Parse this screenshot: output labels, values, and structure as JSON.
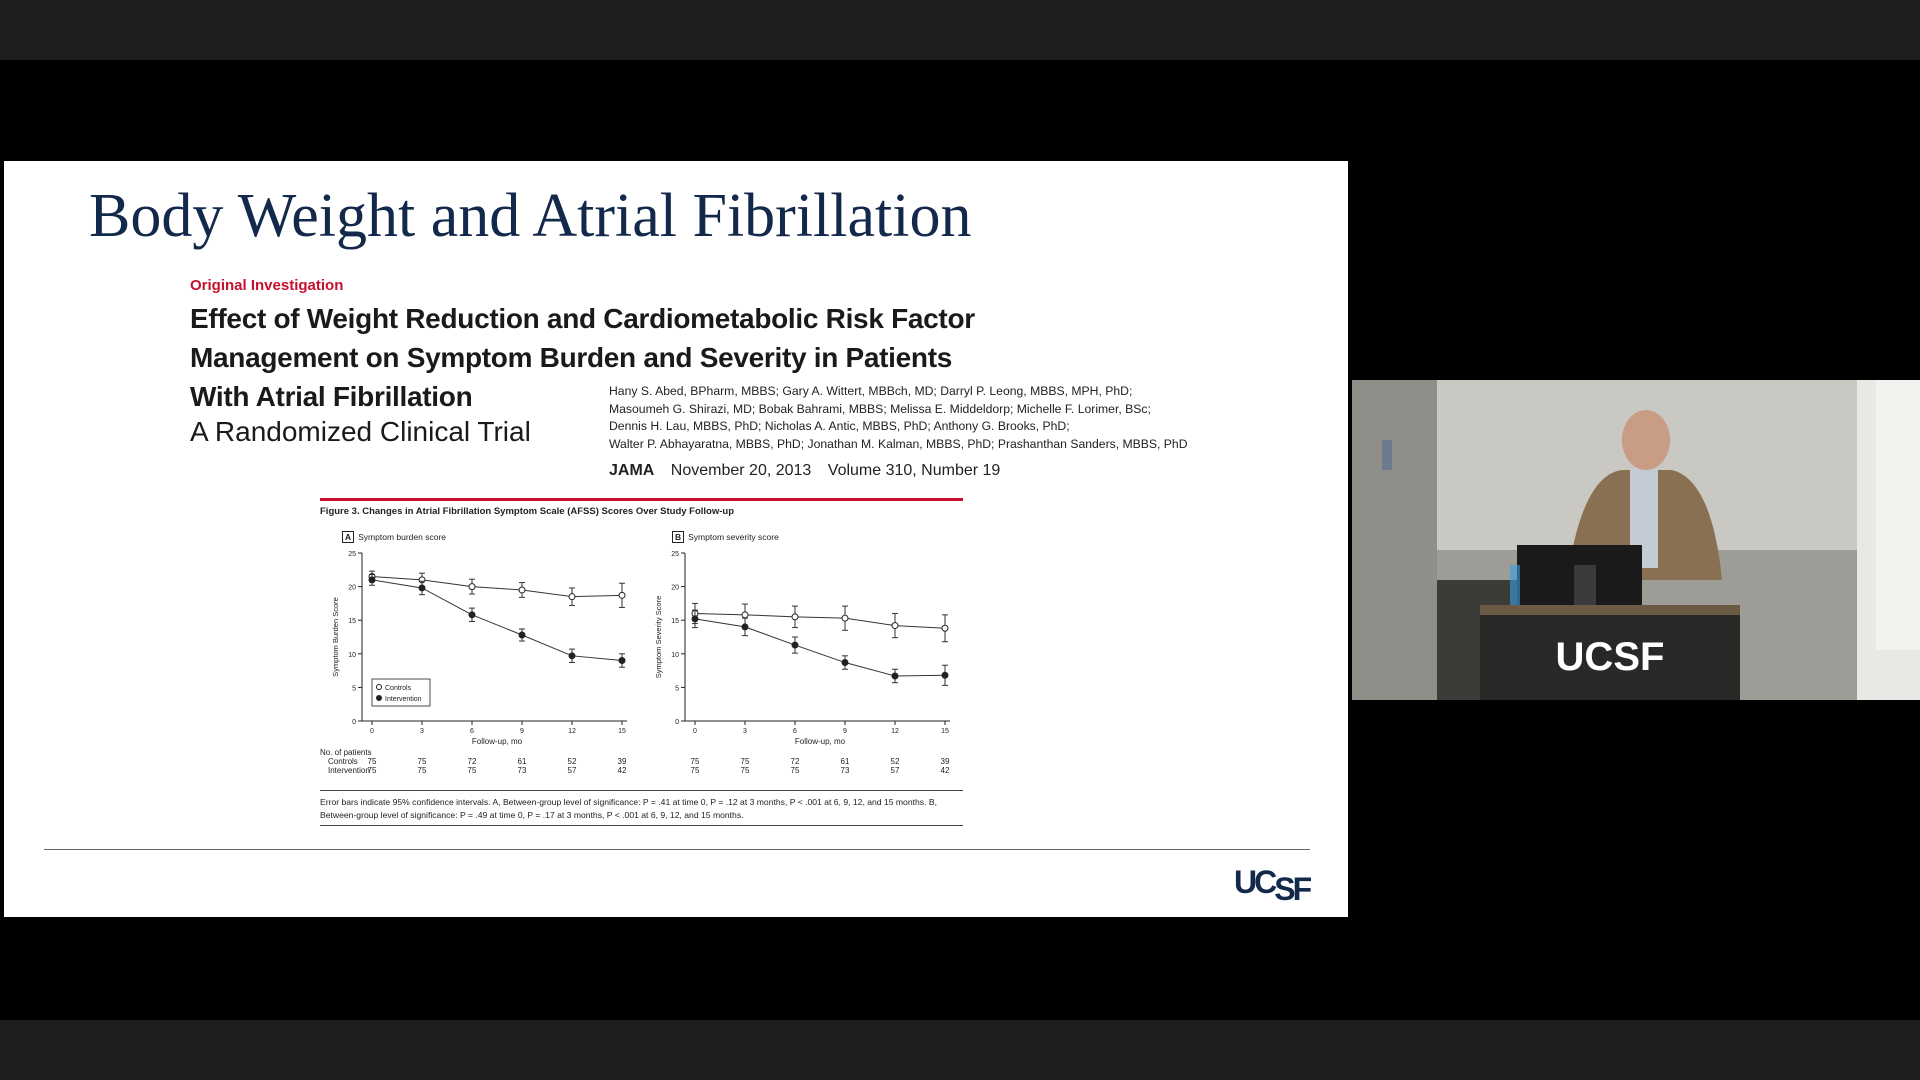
{
  "slide": {
    "title": "Body Weight and Atrial Fibrillation",
    "section": "Original Investigation",
    "paper_title_lines": [
      "Effect of Weight Reduction and Cardiometabolic Risk Factor",
      "Management on Symptom Burden and Severity in Patients",
      "With Atrial Fibrillation"
    ],
    "paper_subtitle": "A Randomized Clinical Trial",
    "authors_lines": [
      "Hany S. Abed, BPharm, MBBS; Gary A. Wittert, MBBch, MD; Darryl P. Leong, MBBS, MPH, PhD;",
      "Masoumeh G. Shirazi, MD; Bobak Bahrami, MBBS; Melissa E. Middeldorp; Michelle F. Lorimer, BSc;",
      "Dennis H. Lau, MBBS, PhD; Nicholas A. Antic, MBBS, PhD; Anthony G. Brooks, PhD;",
      "Walter P. Abhayaratna, MBBS, PhD; Jonathan M. Kalman, MBBS, PhD; Prashanthan Sanders, MBBS, PhD"
    ],
    "journal": "JAMA",
    "date": "November 20, 2013",
    "volume": "Volume 310, Number 19",
    "figure_caption": "Figure 3. Changes in Atrial Fibrillation Symptom Scale (AFSS) Scores Over Study Follow-up",
    "panel_a_letter": "A",
    "panel_a_label": "Symptom burden score",
    "panel_b_letter": "B",
    "panel_b_label": "Symptom severity score",
    "patients_header": "No. of patients",
    "patients_controls_label": "Controls",
    "patients_intervention_label": "Intervention",
    "patients_controls": [
      "75",
      "75",
      "72",
      "61",
      "52",
      "39"
    ],
    "patients_intervention": [
      "75",
      "75",
      "75",
      "73",
      "57",
      "42"
    ],
    "figure_note_line1": "Error bars indicate 95% confidence intervals. A, Between-group level of significance: P = .41 at time 0, P = .12 at 3 months, P < .001 at 6, 9, 12, and 15 months. B,",
    "figure_note_line2": "Between-group level of significance: P = .49 at time 0, P = .17 at 3 months, P < .001 at 6, 9, 12, and 15 months.",
    "logo_uc": "UC",
    "logo_sf": "SF"
  },
  "video": {
    "podium_logo": "UCSF"
  },
  "colors": {
    "title_navy": "#13294b",
    "accent_red": "#c8102e"
  },
  "chart_data": [
    {
      "type": "line",
      "title": "Symptom burden score",
      "xlabel": "Follow-up, mo",
      "ylabel": "Symptom Burden Score",
      "x": [
        0,
        3,
        6,
        9,
        12,
        15
      ],
      "ylim": [
        0,
        25
      ],
      "yticks": [
        0,
        5,
        10,
        15,
        20,
        25
      ],
      "legend": "bottom-left",
      "series": [
        {
          "name": "Controls",
          "marker": "open",
          "values": [
            21.5,
            21.0,
            20.0,
            19.5,
            18.5,
            18.7
          ],
          "ci": [
            0.8,
            1.0,
            1.1,
            1.1,
            1.3,
            1.8
          ]
        },
        {
          "name": "Intervention",
          "marker": "filled",
          "values": [
            21.0,
            19.8,
            15.8,
            12.8,
            9.7,
            9.0
          ],
          "ci": [
            0.8,
            1.0,
            1.0,
            0.9,
            1.0,
            1.0
          ]
        }
      ]
    },
    {
      "type": "line",
      "title": "Symptom severity score",
      "xlabel": "Follow-up, mo",
      "ylabel": "Symptom Severity Score",
      "x": [
        0,
        3,
        6,
        9,
        12,
        15
      ],
      "ylim": [
        0,
        25
      ],
      "yticks": [
        0,
        5,
        10,
        15,
        20,
        25
      ],
      "series": [
        {
          "name": "Controls",
          "marker": "open",
          "values": [
            16.0,
            15.8,
            15.5,
            15.3,
            14.2,
            13.8
          ],
          "ci": [
            1.5,
            1.6,
            1.6,
            1.8,
            1.8,
            2.0
          ]
        },
        {
          "name": "Intervention",
          "marker": "filled",
          "values": [
            15.2,
            14.0,
            11.3,
            8.7,
            6.7,
            6.8
          ],
          "ci": [
            1.3,
            1.3,
            1.2,
            1.0,
            1.0,
            1.5
          ]
        }
      ]
    }
  ]
}
